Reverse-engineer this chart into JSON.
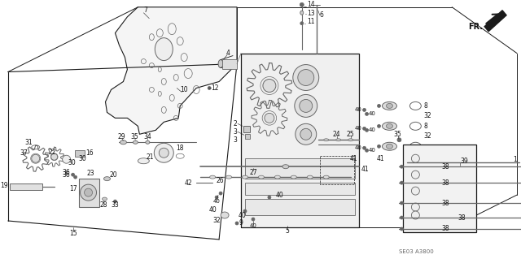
{
  "background_color": "#ffffff",
  "fig_width": 6.4,
  "fig_height": 3.19,
  "dpi": 100,
  "diagram_code": "SE03 A3800",
  "fr_label": "FR.",
  "line_color": "#1a1a1a",
  "text_color": "#111111",
  "gray": "#666666",
  "light_gray": "#aaaaaa",
  "mid_gray": "#888888"
}
